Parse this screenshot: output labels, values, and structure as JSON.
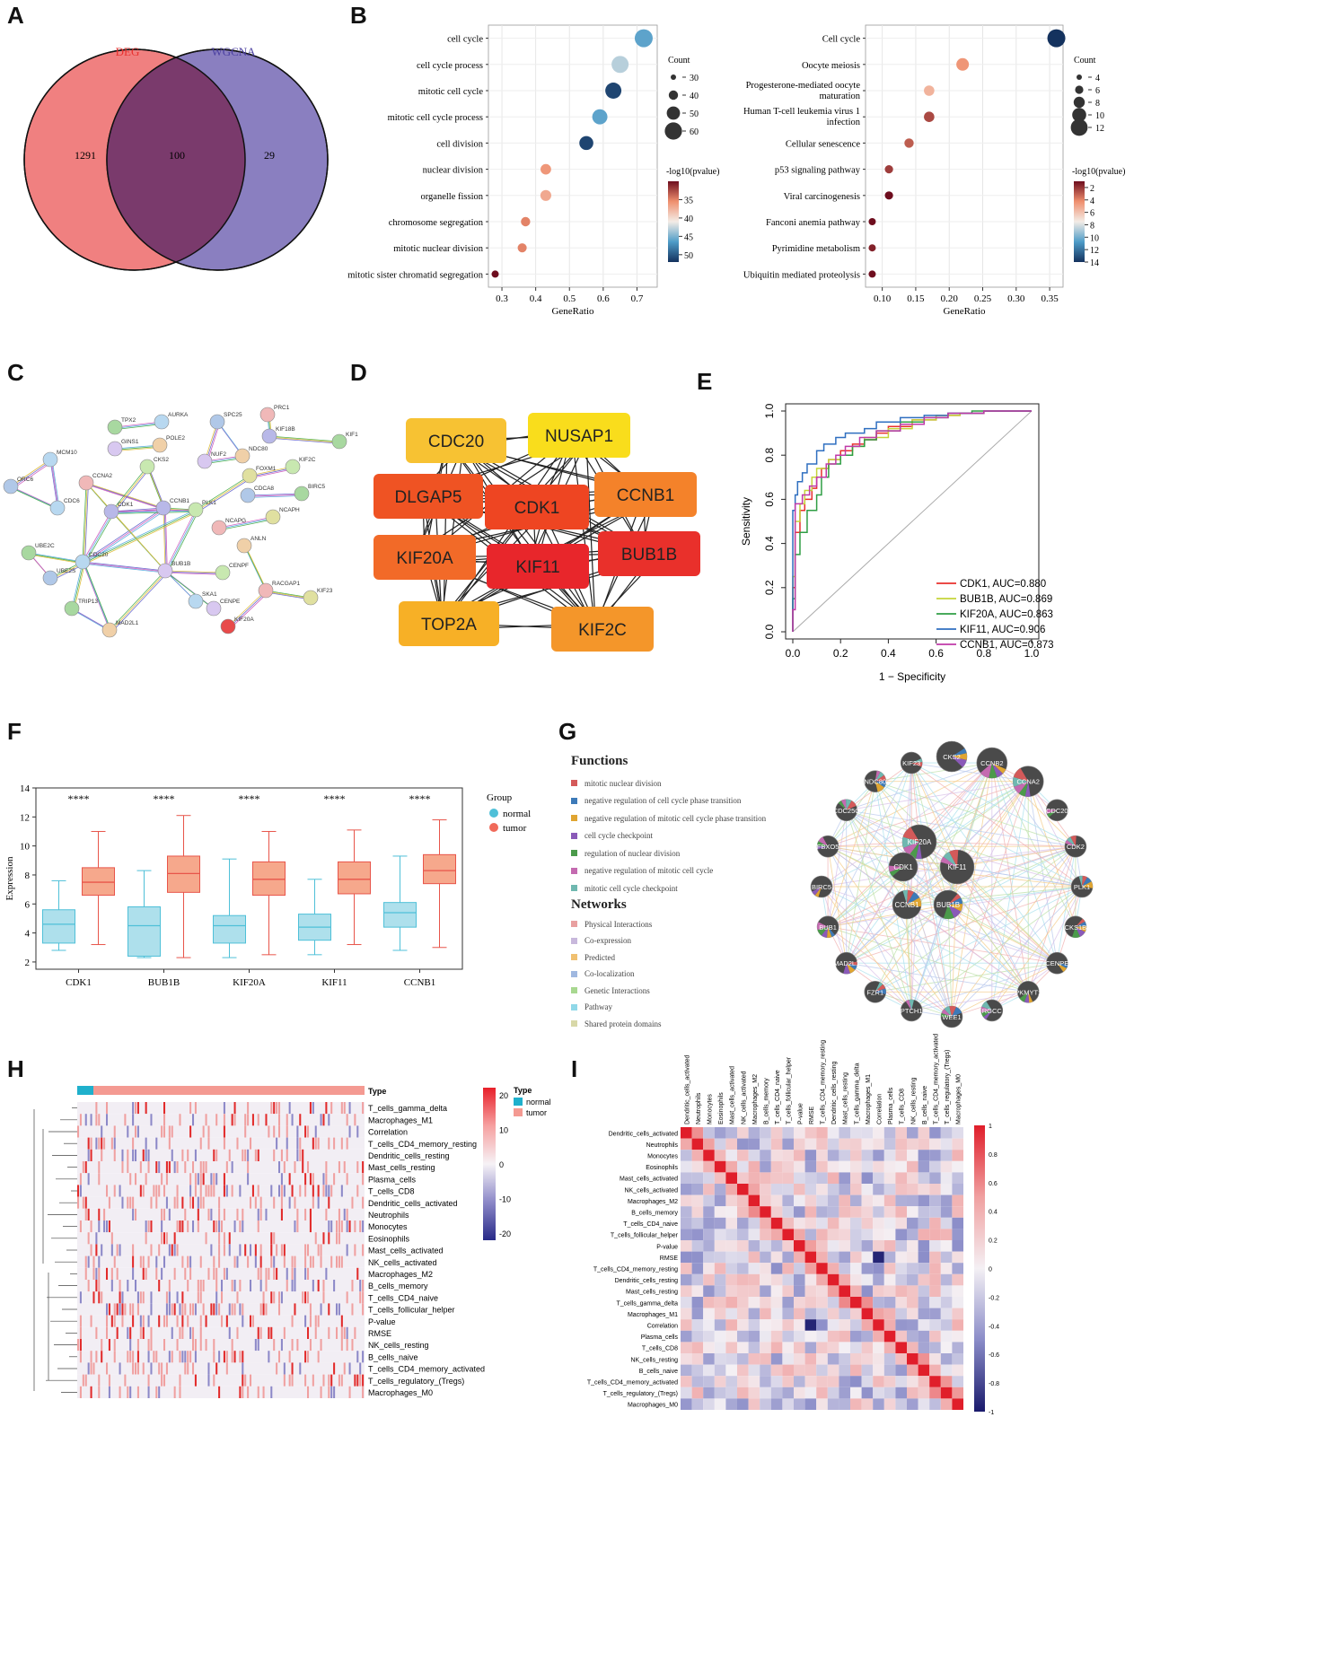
{
  "panels": {
    "A": "A",
    "B": "B",
    "C": "C",
    "D": "D",
    "E": "E",
    "F": "F",
    "G": "G",
    "H": "H",
    "I": "I"
  },
  "venn": {
    "left_label": "DEG",
    "right_label": "WGCNA",
    "left_only": "1291",
    "overlap": "100",
    "right_only": "29",
    "colors": {
      "left": "#f08080",
      "right": "#8a7fc0",
      "overlap": "#7a3a6c"
    }
  },
  "chart_data": [
    {
      "type": "scatter",
      "name": "GO",
      "xlabel": "GeneRatio",
      "xticks": [
        "0.3",
        "0.4",
        "0.5",
        "0.6",
        "0.7"
      ],
      "xlim": [
        0.26,
        0.76
      ],
      "categories": [
        "cell cycle",
        "cell cycle process",
        "mitotic cell cycle",
        "mitotic cell cycle process",
        "cell division",
        "nuclear division",
        "organelle fission",
        "chromosome segregation",
        "mitotic nuclear division",
        "mitotic sister chromatid segregation"
      ],
      "gene_ratio": [
        0.72,
        0.65,
        0.63,
        0.59,
        0.55,
        0.43,
        0.43,
        0.37,
        0.36,
        0.28
      ],
      "count": [
        58,
        55,
        52,
        49,
        45,
        34,
        35,
        30,
        29,
        23
      ],
      "neglog10p": [
        46,
        43,
        51,
        46,
        51,
        36,
        37,
        35,
        35,
        30
      ],
      "size_legend_title": "Count",
      "size_legend": [
        "30",
        "40",
        "50",
        "60"
      ],
      "color_legend_title": "-log10(pvalue)",
      "color_ticks": [
        "35",
        "40",
        "45",
        "50"
      ],
      "color_range": [
        30,
        52
      ]
    },
    {
      "type": "scatter",
      "name": "KEGG",
      "xlabel": "GeneRatio",
      "xticks": [
        "0.10",
        "0.15",
        "0.20",
        "0.25",
        "0.30",
        "0.35"
      ],
      "xlim": [
        0.075,
        0.37
      ],
      "categories": [
        "Cell cycle",
        "Oocyte meiosis",
        "Progesterone-mediated oocyte maturation",
        "Human T-cell leukemia virus 1 infection",
        "Cellular senescence",
        "p53 signaling pathway",
        "Viral carcinogenesis",
        "Fanconi anemia pathway",
        "Pyrimidine metabolism",
        "Ubiquitin mediated proteolysis"
      ],
      "gene_ratio": [
        0.36,
        0.22,
        0.17,
        0.17,
        0.14,
        0.11,
        0.11,
        0.085,
        0.085,
        0.085
      ],
      "count": [
        13,
        8,
        6,
        6,
        5,
        4,
        4,
        3,
        3,
        3
      ],
      "neglog10p": [
        14,
        4.5,
        5.5,
        2.5,
        3,
        2.2,
        1,
        1,
        1.5,
        1
      ],
      "size_legend_title": "Count",
      "size_legend": [
        "4",
        "6",
        "8",
        "10",
        "12"
      ],
      "color_legend_title": "-log10(pvalue)",
      "color_ticks": [
        "2",
        "4",
        "6",
        "8",
        "10",
        "12",
        "14"
      ],
      "color_range": [
        1,
        14
      ]
    },
    {
      "type": "line",
      "name": "ROC",
      "xlabel": "1 − Specificity",
      "ylabel": "Sensitivity",
      "xticks": [
        "0.0",
        "0.2",
        "0.4",
        "0.6",
        "0.8",
        "1.0"
      ],
      "yticks": [
        "0.0",
        "0.2",
        "0.4",
        "0.6",
        "0.8",
        "1.0"
      ],
      "series": [
        {
          "name": "CDK1, AUC=0.880",
          "color": "#e8302d",
          "x": [
            0,
            0.01,
            0.03,
            0.05,
            0.08,
            0.1,
            0.12,
            0.15,
            0.2,
            0.25,
            0.3,
            0.35,
            0.4,
            0.5,
            0.6,
            0.7,
            0.8,
            1
          ],
          "y": [
            0,
            0.2,
            0.45,
            0.55,
            0.6,
            0.65,
            0.7,
            0.74,
            0.78,
            0.82,
            0.85,
            0.87,
            0.9,
            0.93,
            0.96,
            0.98,
            0.99,
            1
          ]
        },
        {
          "name": "BUB1B, AUC=0.869",
          "color": "#c5d43a",
          "x": [
            0,
            0.01,
            0.03,
            0.05,
            0.08,
            0.1,
            0.15,
            0.2,
            0.25,
            0.3,
            0.4,
            0.5,
            0.6,
            0.7,
            0.8,
            1
          ],
          "y": [
            0,
            0.25,
            0.5,
            0.58,
            0.64,
            0.7,
            0.74,
            0.78,
            0.8,
            0.84,
            0.88,
            0.92,
            0.96,
            0.98,
            0.99,
            1
          ]
        },
        {
          "name": "KIF20A, AUC=0.863",
          "color": "#2f9e44",
          "x": [
            0,
            0.01,
            0.03,
            0.06,
            0.1,
            0.12,
            0.15,
            0.2,
            0.25,
            0.3,
            0.35,
            0.45,
            0.55,
            0.65,
            0.75,
            1
          ],
          "y": [
            0,
            0.15,
            0.35,
            0.45,
            0.55,
            0.62,
            0.7,
            0.76,
            0.8,
            0.84,
            0.87,
            0.91,
            0.95,
            0.97,
            0.99,
            1
          ]
        },
        {
          "name": "KIF11, AUC=0.906",
          "color": "#2f6fc0",
          "x": [
            0,
            0.01,
            0.02,
            0.04,
            0.06,
            0.1,
            0.13,
            0.18,
            0.22,
            0.3,
            0.35,
            0.45,
            0.55,
            0.65,
            0.8,
            1
          ],
          "y": [
            0,
            0.55,
            0.62,
            0.68,
            0.72,
            0.76,
            0.82,
            0.85,
            0.88,
            0.9,
            0.92,
            0.95,
            0.97,
            0.98,
            0.99,
            1
          ]
        },
        {
          "name": "CCNB1, AUC=0.873",
          "color": "#c03aa8",
          "x": [
            0,
            0.01,
            0.04,
            0.07,
            0.1,
            0.14,
            0.18,
            0.22,
            0.28,
            0.35,
            0.45,
            0.55,
            0.65,
            0.8,
            1
          ],
          "y": [
            0,
            0.1,
            0.58,
            0.62,
            0.66,
            0.7,
            0.76,
            0.8,
            0.84,
            0.88,
            0.91,
            0.94,
            0.97,
            0.99,
            1
          ]
        }
      ]
    },
    {
      "type": "box",
      "name": "Expression",
      "ylabel": "Expression",
      "yticks": [
        "2",
        "4",
        "6",
        "8",
        "10",
        "12",
        "14"
      ],
      "ylim": [
        1.5,
        14
      ],
      "categories": [
        "CDK1",
        "BUB1B",
        "KIF20A",
        "KIF11",
        "CCNB1"
      ],
      "significance": "****",
      "legend_title": "Group",
      "groups": [
        "normal",
        "tumor"
      ],
      "group_colors": [
        "#4fc0d8",
        "#f06a5a"
      ],
      "normal": [
        [
          2.8,
          3.3,
          4.6,
          5.6,
          7.6
        ],
        [
          2.3,
          2.4,
          4.5,
          5.8,
          8.3
        ],
        [
          2.3,
          3.3,
          4.5,
          5.2,
          9.1
        ],
        [
          2.5,
          3.5,
          4.4,
          5.3,
          7.7
        ],
        [
          2.8,
          4.4,
          5.4,
          6.1,
          9.3
        ]
      ],
      "tumor": [
        [
          3.2,
          6.6,
          7.5,
          8.5,
          11.0
        ],
        [
          2.3,
          6.8,
          8.1,
          9.3,
          12.1
        ],
        [
          2.5,
          6.6,
          7.7,
          8.9,
          11.0
        ],
        [
          3.2,
          6.7,
          7.7,
          8.9,
          11.1
        ],
        [
          3.0,
          7.4,
          8.3,
          9.4,
          11.8
        ]
      ]
    },
    {
      "type": "heatmap",
      "name": "Immune cell infiltration heatmap",
      "rows": [
        "T_cells_gamma_delta",
        "Macrophages_M1",
        "Correlation",
        "T_cells_CD4_memory_resting",
        "Dendritic_cells_resting",
        "Mast_cells_resting",
        "Plasma_cells",
        "T_cells_CD8",
        "Dendritic_cells_activated",
        "Neutrophils",
        "Monocytes",
        "Eosinophils",
        "Mast_cells_activated",
        "NK_cells_activated",
        "Macrophages_M2",
        "B_cells_memory",
        "T_cells_CD4_naive",
        "T_cells_follicular_helper",
        "P-value",
        "RMSE",
        "NK_cells_resting",
        "B_cells_naive",
        "T_cells_CD4_memory_activated",
        "T_cells_regulatory_(Tregs)",
        "Macrophages_M0"
      ],
      "annotation_title": "Type",
      "annotation_groups": [
        "normal",
        "tumor"
      ],
      "color_ticks": [
        "20",
        "10",
        "0",
        "-10",
        "-20"
      ],
      "color_range": [
        -20,
        20
      ]
    },
    {
      "type": "heatmap",
      "name": "Correlation matrix",
      "labels": [
        "Dendritic_cells_activated",
        "Neutrophils",
        "Monocytes",
        "Eosinophils",
        "Mast_cells_activated",
        "NK_cells_activated",
        "Macrophages_M2",
        "B_cells_memory",
        "T_cells_CD4_naive",
        "T_cells_follicular_helper",
        "P-value",
        "RMSE",
        "T_cells_CD4_memory_resting",
        "Dendritic_cells_resting",
        "Mast_cells_resting",
        "T_cells_gamma_delta",
        "Macrophages_M1",
        "Correlation",
        "Plasma_cells",
        "T_cells_CD8",
        "NK_cells_resting",
        "B_cells_naive",
        "T_cells_CD4_memory_activated",
        "T_cells_regulatory_(Tregs)",
        "Macrophages_M0"
      ],
      "color_ticks": [
        "1",
        "0.8",
        "0.6",
        "0.4",
        "0.2",
        "0",
        "-0.2",
        "-0.4",
        "-0.6",
        "-0.8",
        "-1"
      ],
      "color_range": [
        -1,
        1
      ]
    }
  ],
  "ppi_string": {
    "nodes": [
      {
        "id": "TPX2"
      },
      {
        "id": "AURKA"
      },
      {
        "id": "GINS1"
      },
      {
        "id": "POLE2"
      },
      {
        "id": "CKS2"
      },
      {
        "id": "SPC25"
      },
      {
        "id": "PRC1"
      },
      {
        "id": "KIF18B"
      },
      {
        "id": "KIF1"
      },
      {
        "id": "MCM10"
      },
      {
        "id": "NUF2"
      },
      {
        "id": "NDC80"
      },
      {
        "id": "KIF2C"
      },
      {
        "id": "ORC6"
      },
      {
        "id": "CCNA2"
      },
      {
        "id": "FOXM1"
      },
      {
        "id": "BIRC5"
      },
      {
        "id": "CDC6"
      },
      {
        "id": "CDK1"
      },
      {
        "id": "CCNB1"
      },
      {
        "id": "PLK1"
      },
      {
        "id": "CDCA8"
      },
      {
        "id": "NCAPG"
      },
      {
        "id": "NCAPH"
      },
      {
        "id": "UBE2C"
      },
      {
        "id": "CDC20"
      },
      {
        "id": "BUB1B"
      },
      {
        "id": "ANLN"
      },
      {
        "id": "CENPF"
      },
      {
        "id": "UBE2S"
      },
      {
        "id": "RACGAP1"
      },
      {
        "id": "KIF23"
      },
      {
        "id": "TRIP13"
      },
      {
        "id": "SKA1"
      },
      {
        "id": "CENPE"
      },
      {
        "id": "MAD2L1"
      },
      {
        "id": "KIF20A"
      }
    ]
  },
  "ppi_hub": {
    "nodes": [
      {
        "id": "CDC20",
        "color": "#f7c233"
      },
      {
        "id": "NUSAP1",
        "color": "#f9dd1c"
      },
      {
        "id": "DLGAP5",
        "color": "#ef5323"
      },
      {
        "id": "CDK1",
        "color": "#ee4522"
      },
      {
        "id": "CCNB1",
        "color": "#f4822a"
      },
      {
        "id": "KIF20A",
        "color": "#f26a28"
      },
      {
        "id": "KIF11",
        "color": "#e8262b"
      },
      {
        "id": "BUB1B",
        "color": "#e9302b"
      },
      {
        "id": "TOP2A",
        "color": "#f7b026"
      },
      {
        "id": "KIF2C",
        "color": "#f4962a"
      }
    ]
  },
  "genemania": {
    "functions_title": "Functions",
    "functions": [
      {
        "label": "mitotic nuclear division",
        "color": "#d45a5a"
      },
      {
        "label": "negative regulation of cell cycle phase transition",
        "color": "#3d7ab8"
      },
      {
        "label": "negative regulation of mitotic cell cycle phase transition",
        "color": "#e0a531"
      },
      {
        "label": "cell cycle checkpoint",
        "color": "#8a5ab8"
      },
      {
        "label": "regulation of nuclear division",
        "color": "#4b9a4b"
      },
      {
        "label": "negative regulation of mitotic cell cycle",
        "color": "#c46ab0"
      },
      {
        "label": "mitotic cell cycle checkpoint",
        "color": "#6fb8b0"
      }
    ],
    "networks_title": "Networks",
    "networks": [
      {
        "label": "Physical Interactions",
        "color": "#e8a0a0"
      },
      {
        "label": "Co-expression",
        "color": "#c8b8dc"
      },
      {
        "label": "Predicted",
        "color": "#f0c070"
      },
      {
        "label": "Co-localization",
        "color": "#a0b8e0"
      },
      {
        "label": "Genetic Interactions",
        "color": "#a8d890"
      },
      {
        "label": "Pathway",
        "color": "#90d8e8"
      },
      {
        "label": "Shared protein domains",
        "color": "#d8d8a8"
      }
    ],
    "outer_nodes": [
      "CKS2",
      "CCNB2",
      "CCNA2",
      "CDC20",
      "CDK2",
      "PLK1",
      "CKS1B",
      "CENPE",
      "PKMYT1",
      "RGCC",
      "WEE1",
      "PTCH1",
      "FZR1",
      "MAD2L1",
      "BUB1",
      "BIRC5",
      "FBXO5",
      "CDC25C",
      "NDC80",
      "KIF23"
    ],
    "inner_nodes": [
      "KIF20A",
      "CDK1",
      "KIF11",
      "CCNB1",
      "BUB1B"
    ]
  }
}
